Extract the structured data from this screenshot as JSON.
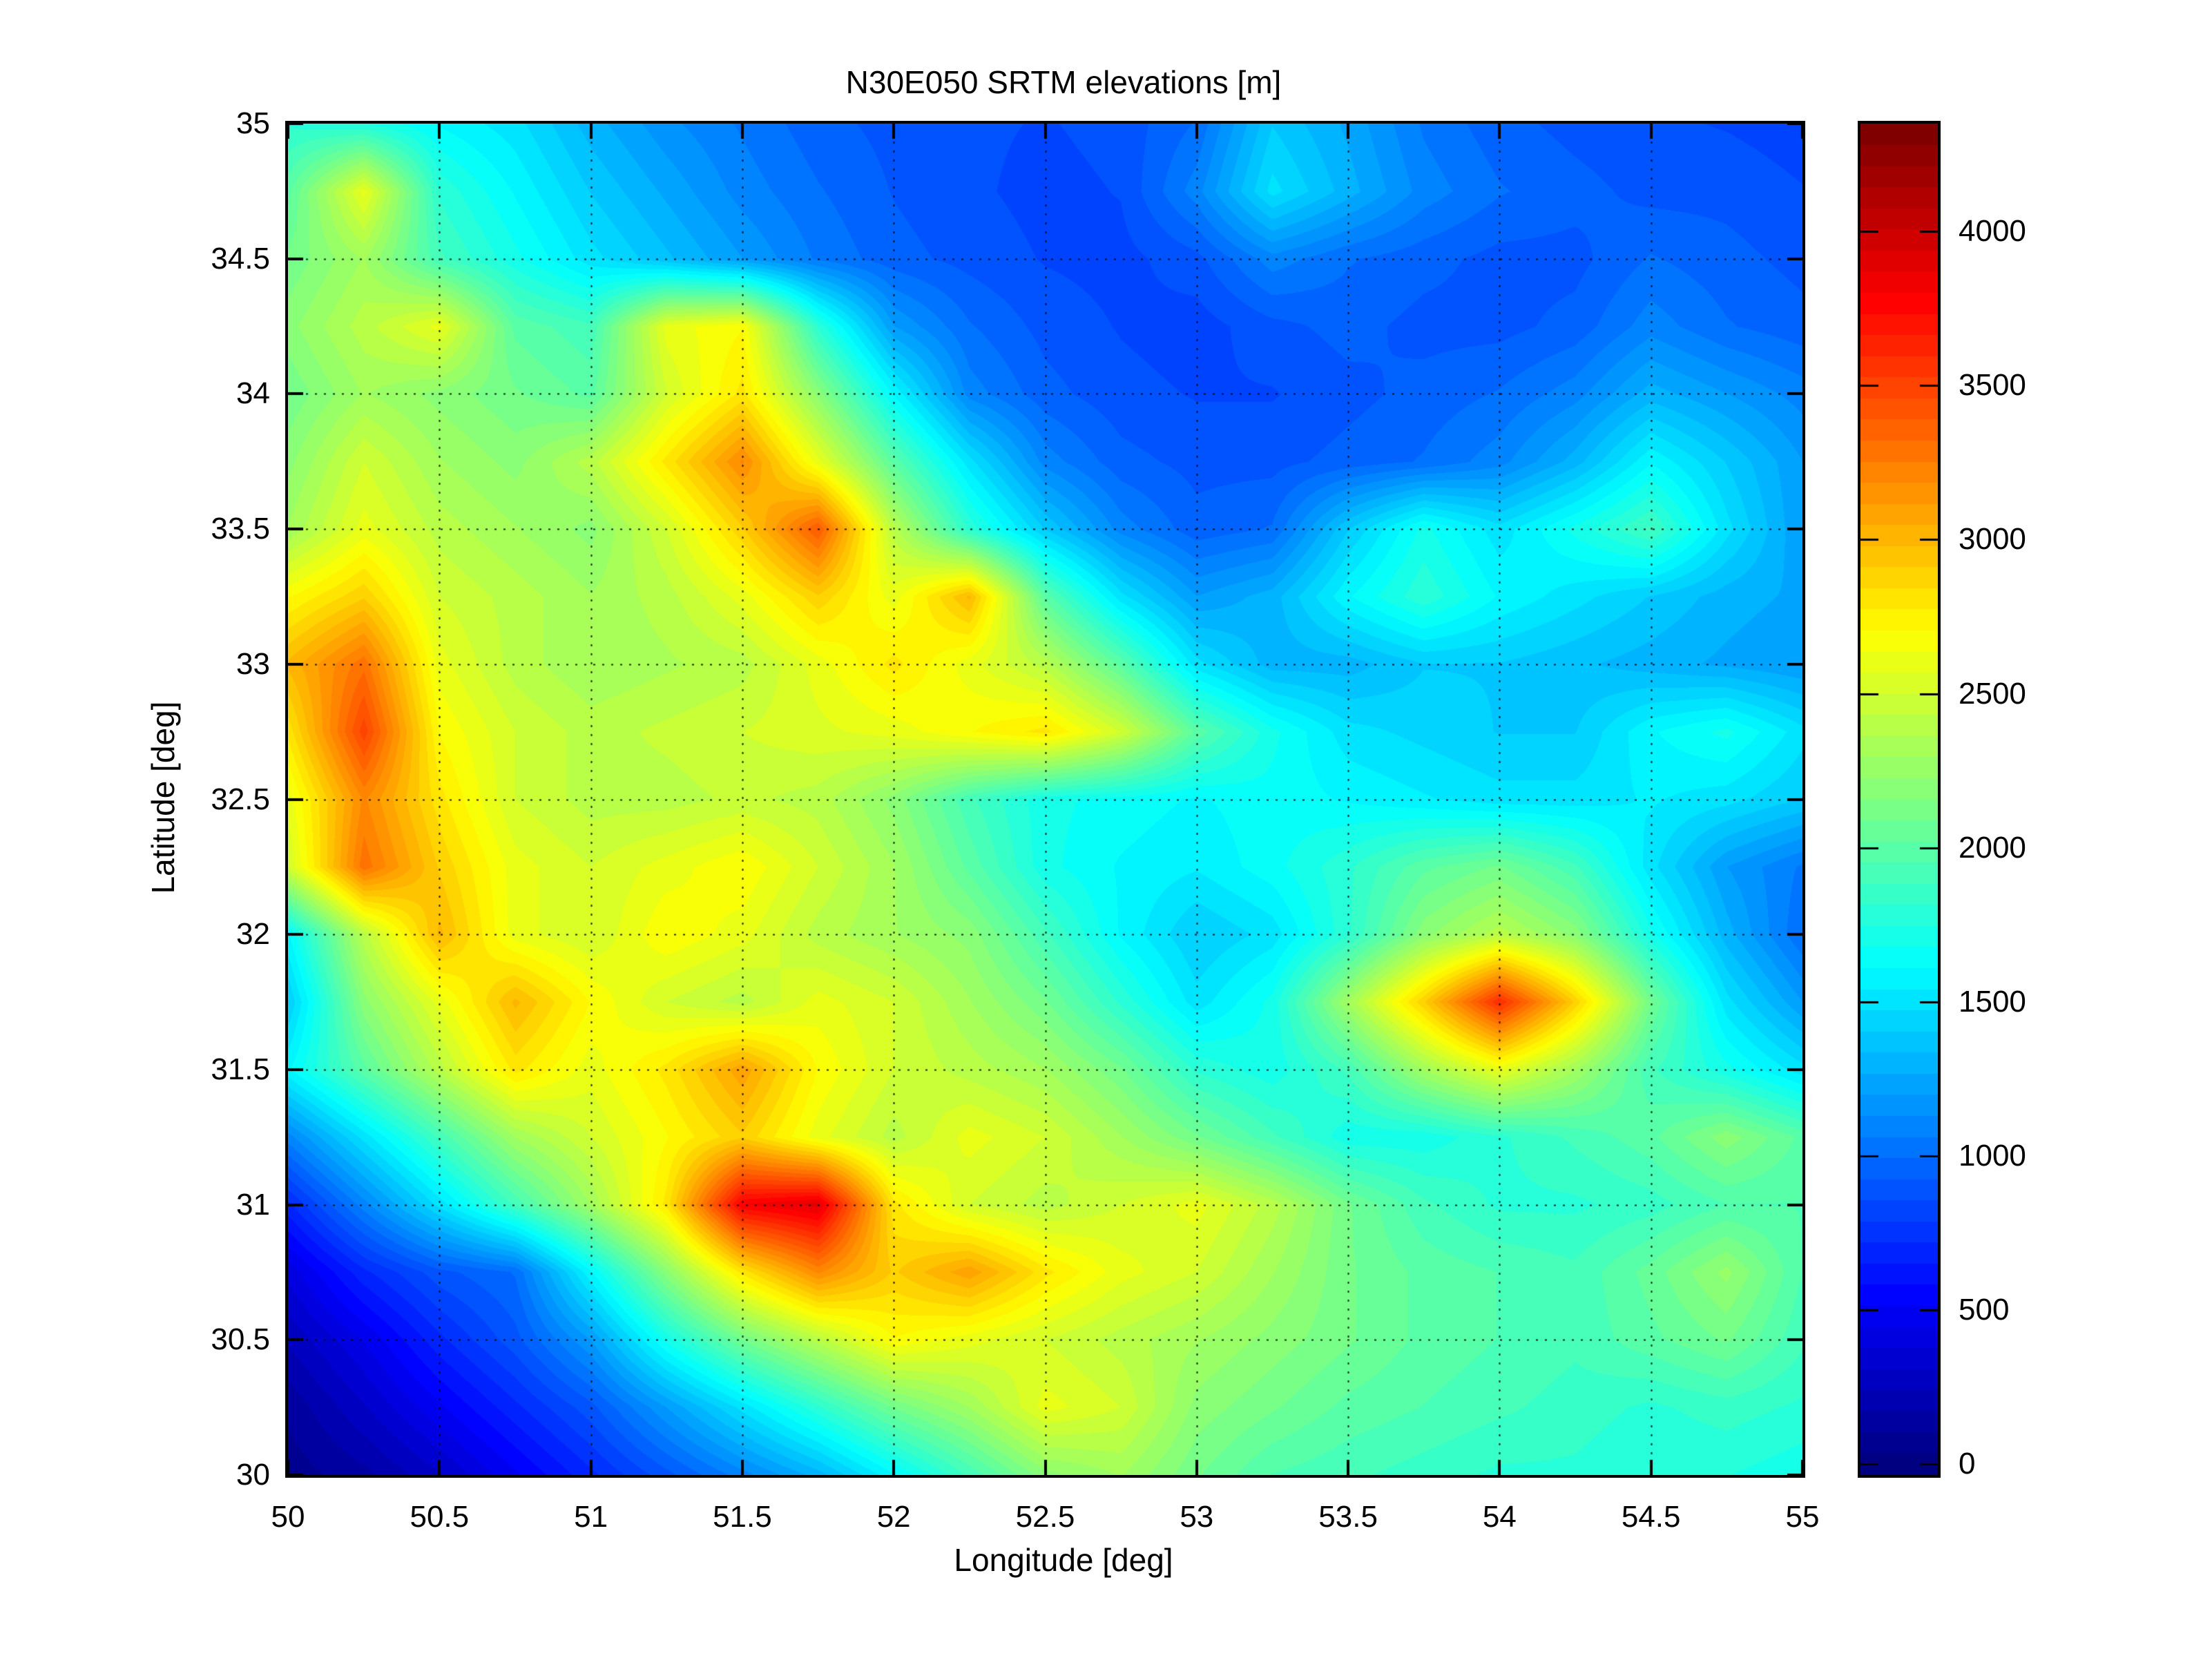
{
  "title": "N30E050 SRTM elevations [m]",
  "x_axis": {
    "label": "Longitude [deg]",
    "range": [
      50,
      55
    ],
    "tick_values": [
      50,
      50.5,
      51,
      51.5,
      52,
      52.5,
      53,
      53.5,
      54,
      54.5,
      55
    ],
    "tick_labels": [
      "50",
      "50.5",
      "51",
      "51.5",
      "52",
      "52.5",
      "53",
      "53.5",
      "54",
      "54.5",
      "55"
    ]
  },
  "y_axis": {
    "label": "Latitude [deg]",
    "range": [
      30,
      35
    ],
    "tick_values": [
      30,
      30.5,
      31,
      31.5,
      32,
      32.5,
      33,
      33.5,
      34,
      34.5,
      35
    ],
    "tick_labels": [
      "30",
      "30.5",
      "31",
      "31.5",
      "32",
      "32.5",
      "33",
      "33.5",
      "34",
      "34.5",
      "35"
    ]
  },
  "colorbar": {
    "tick_values": [
      0,
      500,
      1000,
      1500,
      2000,
      2500,
      3000,
      3500,
      4000
    ],
    "tick_labels": [
      "0",
      "500",
      "1000",
      "1500",
      "2000",
      "2500",
      "3000",
      "3500",
      "4000"
    ],
    "clim": [
      -35,
      4350
    ],
    "levels": 64
  },
  "colors": {
    "background": "#ffffff",
    "axis_frame": "#000000",
    "text": "#000000",
    "grid_dots": "#000000",
    "jet_low": "#000080",
    "jet_blue": "#0000ff",
    "jet_cyan": "#00ffff",
    "jet_yellow": "#ffff00",
    "jet_red": "#ff0000",
    "jet_high": "#800000"
  },
  "chart_data": {
    "type": "heatmap",
    "title": "N30E050 SRTM elevations [m]",
    "xlabel": "Longitude [deg]",
    "ylabel": "Latitude [deg]",
    "units": "m",
    "colormap": "jet",
    "levels": 64,
    "clim": [
      -35,
      4350
    ],
    "grid": true,
    "xlim": [
      50,
      55
    ],
    "ylim": [
      30,
      35
    ],
    "x": [
      50,
      50.25,
      50.5,
      50.75,
      51,
      51.25,
      51.5,
      51.75,
      52,
      52.25,
      52.5,
      52.75,
      53,
      53.25,
      53.5,
      53.75,
      54,
      54.25,
      54.5,
      54.75,
      55
    ],
    "y": [
      35,
      34.75,
      34.5,
      34.25,
      34,
      33.75,
      33.5,
      33.25,
      33,
      32.75,
      32.5,
      32.25,
      32,
      31.75,
      31.5,
      31.25,
      31,
      30.75,
      30.5,
      30.25,
      30
    ],
    "values": [
      [
        1800,
        1750,
        1600,
        1500,
        1300,
        1150,
        1050,
        950,
        900,
        870,
        850,
        880,
        1000,
        1400,
        1250,
        1050,
        950,
        900,
        870,
        850,
        820
      ],
      [
        2000,
        2600,
        1800,
        1600,
        1400,
        1250,
        1100,
        1000,
        920,
        870,
        830,
        860,
        1100,
        1500,
        1300,
        1100,
        1000,
        950,
        900,
        900,
        860
      ],
      [
        2100,
        2300,
        1900,
        1700,
        1500,
        1350,
        1200,
        1050,
        950,
        900,
        850,
        830,
        900,
        1100,
        1000,
        950,
        900,
        900,
        1000,
        950,
        900
      ],
      [
        2200,
        2400,
        2600,
        2000,
        1900,
        2600,
        2700,
        1800,
        1200,
        1000,
        900,
        850,
        820,
        900,
        950,
        900,
        900,
        950,
        1100,
        1000,
        950
      ],
      [
        2100,
        2300,
        2200,
        2100,
        2000,
        2500,
        2800,
        2200,
        1600,
        1100,
        950,
        880,
        850,
        850,
        900,
        950,
        1000,
        1100,
        1300,
        1200,
        1100
      ],
      [
        2200,
        2500,
        2300,
        2200,
        2400,
        2800,
        3200,
        2600,
        2000,
        1500,
        1100,
        950,
        900,
        900,
        950,
        1000,
        1100,
        1300,
        1600,
        1400,
        1200
      ],
      [
        2300,
        2600,
        2400,
        2300,
        2200,
        2500,
        2900,
        3400,
        2400,
        1800,
        1400,
        1100,
        950,
        1000,
        1400,
        1700,
        1500,
        1700,
        1900,
        1500,
        1200
      ],
      [
        2700,
        2900,
        2500,
        2400,
        2300,
        2400,
        2600,
        2900,
        2600,
        3000,
        2000,
        1500,
        1200,
        1300,
        1600,
        1800,
        1600,
        1500,
        1400,
        1300,
        1250
      ],
      [
        3000,
        3300,
        2600,
        2400,
        2300,
        2350,
        2400,
        2600,
        2800,
        2600,
        2400,
        2000,
        1500,
        1300,
        1300,
        1400,
        1400,
        1350,
        1300,
        1250,
        1200
      ],
      [
        2800,
        3500,
        2700,
        2500,
        2400,
        2450,
        2500,
        2550,
        2600,
        2700,
        2800,
        2500,
        2000,
        1700,
        1500,
        1450,
        1400,
        1400,
        1600,
        1700,
        1500
      ],
      [
        2600,
        3200,
        2800,
        2500,
        2400,
        2400,
        2450,
        2400,
        2200,
        1900,
        1700,
        1650,
        1600,
        1650,
        1600,
        1550,
        1500,
        1500,
        1550,
        1500,
        1400
      ],
      [
        2500,
        3300,
        2900,
        2600,
        2500,
        2600,
        2700,
        2500,
        2300,
        2000,
        1700,
        1600,
        1550,
        1650,
        1800,
        2000,
        2100,
        1900,
        1500,
        1200,
        1050
      ],
      [
        1600,
        2400,
        3000,
        2600,
        2500,
        2700,
        2600,
        2400,
        2300,
        2200,
        1900,
        1600,
        1400,
        1500,
        1800,
        2200,
        2400,
        2200,
        1700,
        1300,
        1000
      ],
      [
        1400,
        2200,
        2600,
        3000,
        2700,
        2500,
        2400,
        2600,
        2500,
        2300,
        2100,
        1800,
        1500,
        1700,
        2300,
        2900,
        3600,
        2900,
        2100,
        1500,
        1200
      ],
      [
        1600,
        2000,
        2400,
        2800,
        2600,
        2800,
        3100,
        2700,
        2500,
        2400,
        2300,
        2100,
        1800,
        1700,
        1900,
        2300,
        2600,
        2300,
        1900,
        1700,
        1500
      ],
      [
        1100,
        1500,
        1900,
        2300,
        2500,
        2700,
        2900,
        2600,
        2400,
        2600,
        2500,
        2300,
        2100,
        1900,
        1700,
        1700,
        1800,
        1900,
        2000,
        2200,
        2000
      ],
      [
        700,
        1100,
        1500,
        1900,
        2300,
        2800,
        3800,
        3900,
        2800,
        2500,
        2400,
        2500,
        2600,
        2400,
        2100,
        1900,
        1800,
        1800,
        1850,
        1950,
        1950
      ],
      [
        400,
        700,
        900,
        1000,
        1600,
        2200,
        2800,
        3200,
        2900,
        3100,
        2800,
        2600,
        2500,
        2300,
        2100,
        2000,
        1950,
        1900,
        2050,
        2250,
        1950
      ],
      [
        250,
        450,
        700,
        900,
        1200,
        1700,
        2100,
        2400,
        2700,
        2600,
        2500,
        2400,
        2300,
        2200,
        2100,
        2000,
        1950,
        1900,
        2000,
        2100,
        1900
      ],
      [
        120,
        300,
        500,
        700,
        900,
        1200,
        1500,
        1800,
        2100,
        2300,
        2600,
        2500,
        2200,
        2100,
        2000,
        1950,
        1900,
        1850,
        1800,
        1850,
        1800
      ],
      [
        60,
        150,
        300,
        500,
        700,
        900,
        1100,
        1300,
        1600,
        1900,
        2200,
        2300,
        2100,
        1950,
        1900,
        1850,
        1800,
        1800,
        1750,
        1750,
        1700
      ]
    ]
  }
}
